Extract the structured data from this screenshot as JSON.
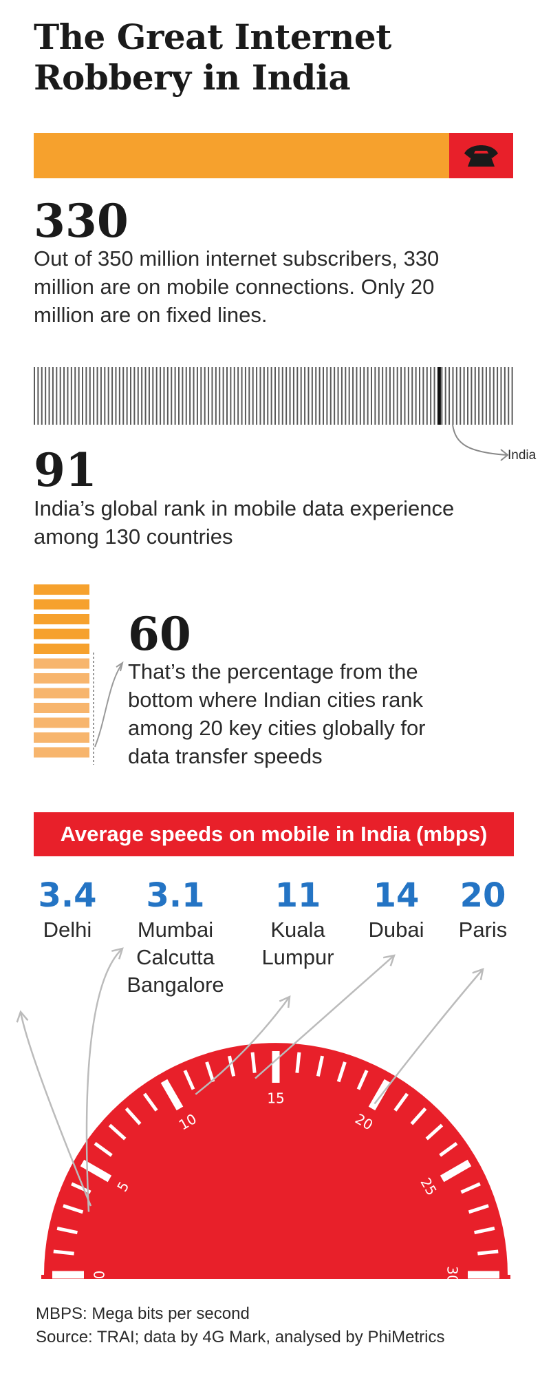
{
  "title_line1": "The Great Internet",
  "title_line2": "Robbery in India",
  "colors": {
    "orange": "#f6a12d",
    "red": "#e8202a",
    "blue": "#2474c4"
  },
  "stat1": {
    "number": "330",
    "text": [
      "Out of 350 million internet subscribers, 330",
      "million are on mobile connections. Only 20",
      "million are on fixed lines."
    ],
    "mobile_share": 330,
    "total": 350,
    "icon": "phone-icon"
  },
  "stat2": {
    "number": "91",
    "text": [
      "India’s global rank in mobile data experience",
      "among 130 countries"
    ],
    "marker_label": "India",
    "rank": 91,
    "countries": 130
  },
  "stat3": {
    "number": "60",
    "text": [
      "That’s the percentage from the",
      "bottom where Indian cities rank",
      "among 20 key cities globally for",
      "data transfer speeds"
    ]
  },
  "chart_data": {
    "type": "gauge",
    "title": "Average speeds on mobile in India (mbps)",
    "range": [
      0,
      30
    ],
    "tick_labels": [
      "0",
      "5",
      "10",
      "15",
      "20",
      "25",
      "30"
    ],
    "cities": [
      {
        "value": "3.4",
        "value_num": 3.4,
        "label": [
          "Delhi"
        ]
      },
      {
        "value": "3.1",
        "value_num": 3.1,
        "label": [
          "Mumbai",
          "Calcutta",
          "Bangalore"
        ]
      },
      {
        "value": "11",
        "value_num": 11,
        "label": [
          "Kuala",
          "Lumpur"
        ]
      },
      {
        "value": "14",
        "value_num": 14,
        "label": [
          "Dubai"
        ]
      },
      {
        "value": "20",
        "value_num": 20,
        "label": [
          "Paris"
        ]
      }
    ]
  },
  "footer": {
    "line1": "MBPS: Mega bits per second",
    "line2": "Source: TRAI; data by 4G Mark, analysed by PhiMetrics"
  }
}
